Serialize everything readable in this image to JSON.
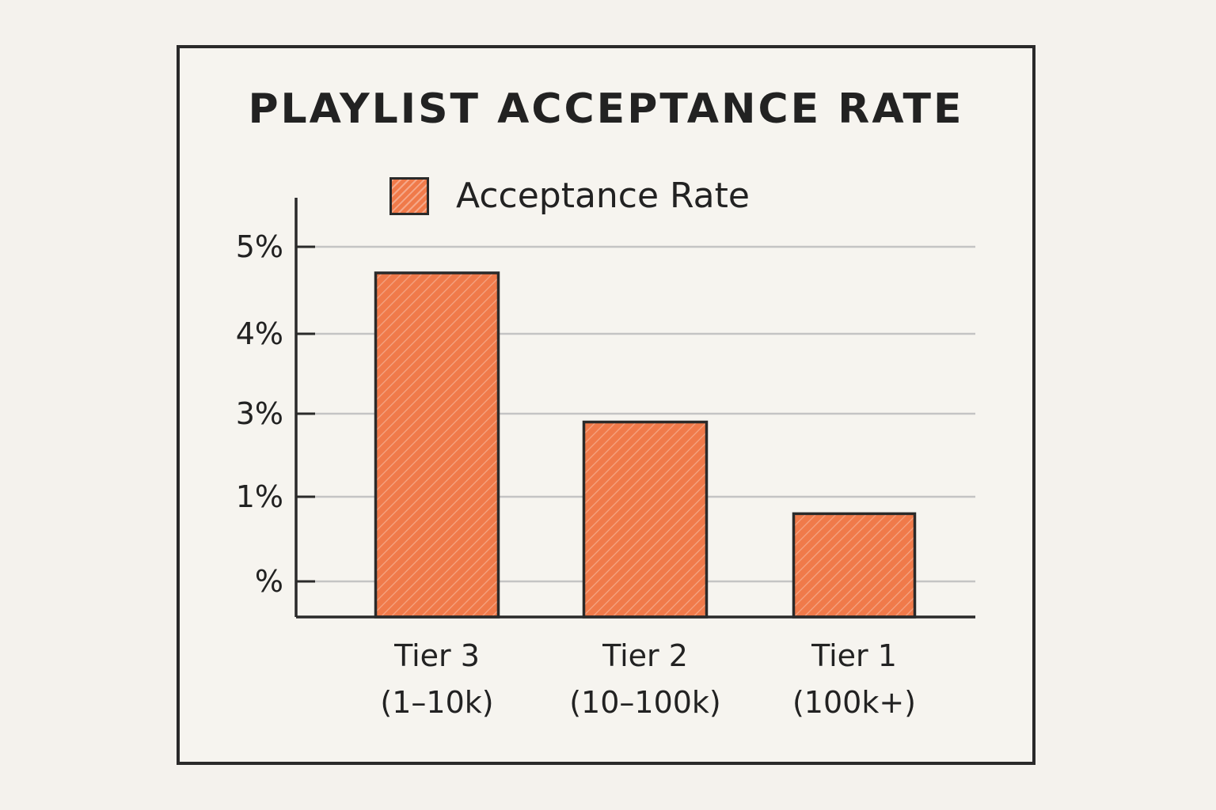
{
  "chart_data": {
    "type": "bar",
    "title": "Playlist Acceptance Rate",
    "legend": {
      "label": "Acceptance Rate",
      "position": "top"
    },
    "categories": [
      {
        "line1": "Tier 3",
        "line2": "(1–10k)"
      },
      {
        "line1": "Tier 2",
        "line2": "(10–100k)"
      },
      {
        "line1": "Tier 1",
        "line2": "(100k+)"
      }
    ],
    "series": [
      {
        "name": "Acceptance Rate",
        "values": [
          4.7,
          2.8,
          0.9
        ]
      }
    ],
    "y_ticks": [
      {
        "value": 0.5,
        "label": "%"
      },
      {
        "value": 1,
        "label": "1%"
      },
      {
        "value": 3,
        "label": "3%"
      },
      {
        "value": 4,
        "label": "4%"
      },
      {
        "value": 5,
        "label": "5%"
      }
    ],
    "ylim": [
      0,
      5.4
    ],
    "grid": true,
    "colors": {
      "bar": "#f07a4a",
      "outline": "#2a2a2a",
      "grid": "#c4c4c4"
    }
  }
}
